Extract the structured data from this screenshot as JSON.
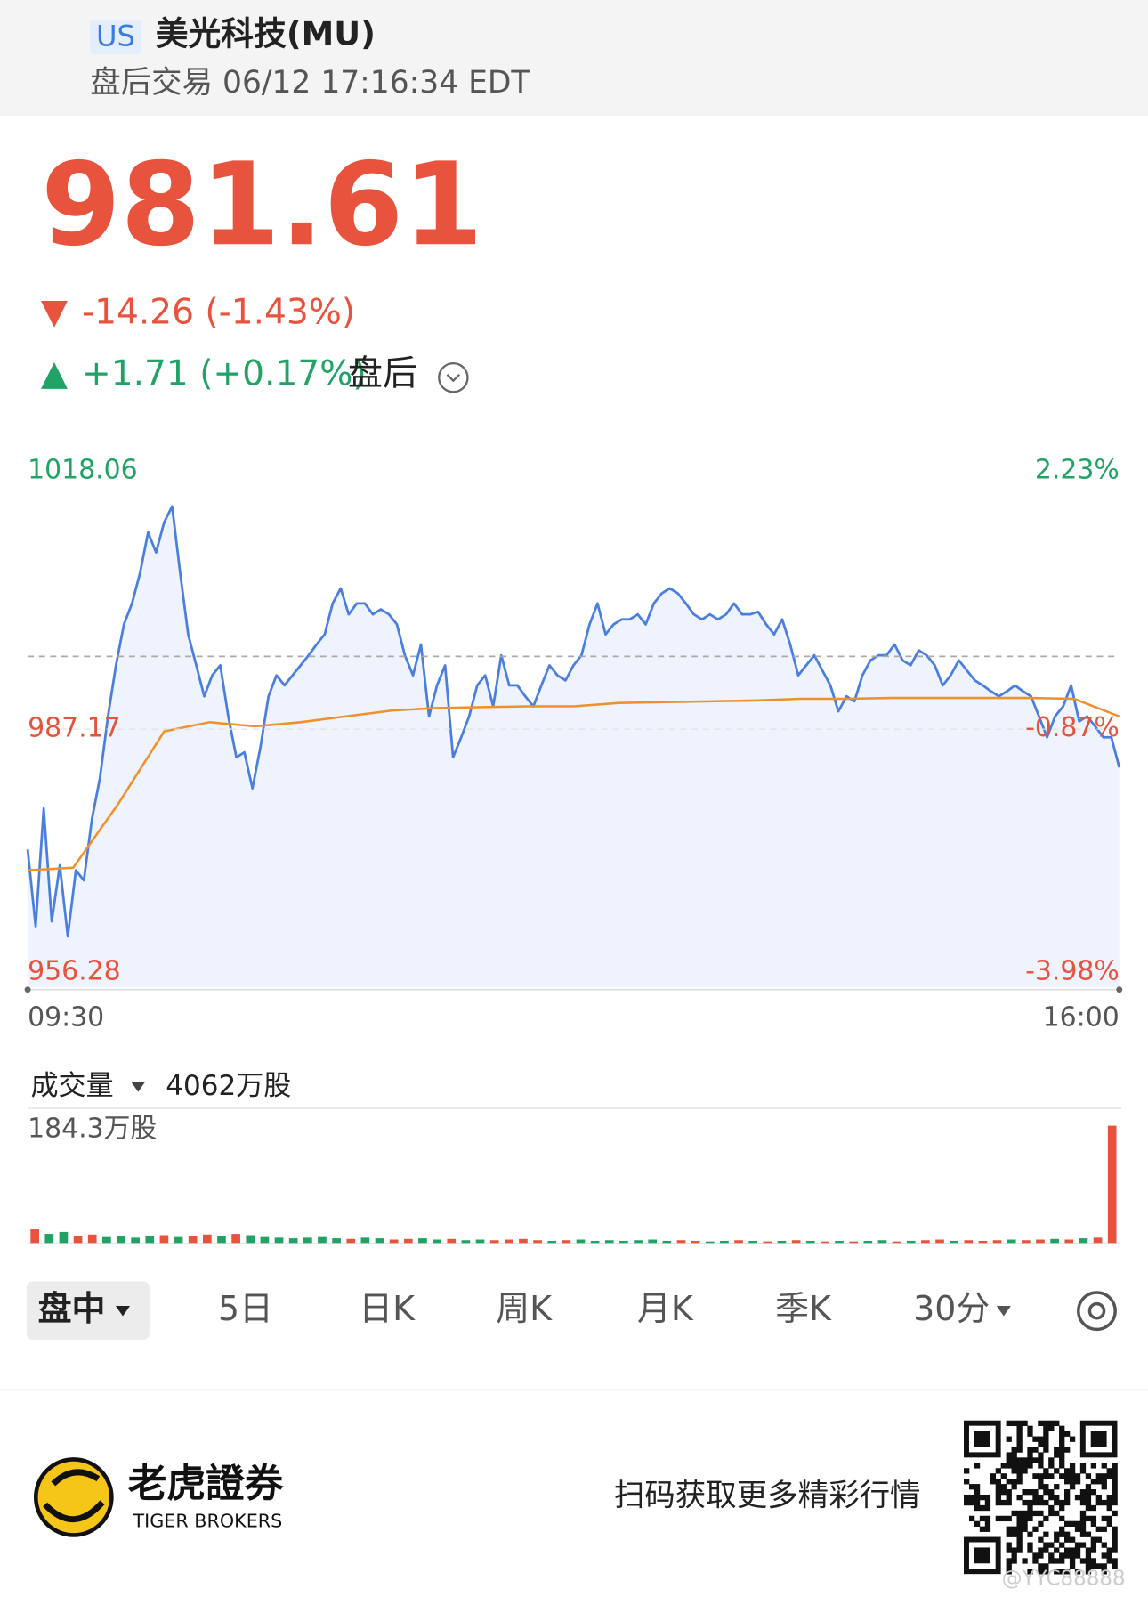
{
  "header": {
    "market": "US",
    "title": "美光科技(MU)",
    "status": "盘后交易 06/12 17:16:34 EDT"
  },
  "quote": {
    "price": "981.61",
    "change": "-14.26 (-1.43%)",
    "after_hours": "+1.71 (+0.17%)",
    "after_hours_label": "盘后"
  },
  "chart_data": {
    "type": "line",
    "x_labels": [
      "09:30",
      "16:00"
    ],
    "ylim": [
      956.28,
      1018.06
    ],
    "yticks": [
      956.28,
      987.17,
      1018.06
    ],
    "y2lim": [
      -3.98,
      2.23
    ],
    "y2ticks": [
      {
        "value": -3.98,
        "label": "-3.98%"
      },
      {
        "value": -0.87,
        "label": "-0.87%"
      },
      {
        "value": 2.23,
        "label": "2.23%"
      }
    ],
    "reference_line": 995.87,
    "up_color": "#21a366",
    "down_color": "#e8533e",
    "series": [
      {
        "color": "#4a7fe0",
        "fill": "#eef3fd",
        "values": [
          972.8,
          963.6,
          977.7,
          964.2,
          970.9,
          962.4,
          970.3,
          969.1,
          976.4,
          981.3,
          988.7,
          994.8,
          999.7,
          1002.2,
          1005.8,
          1010.7,
          1008.3,
          1011.9,
          1013.8,
          1005.8,
          998.5,
          994.8,
          991.1,
          993.6,
          994.8,
          988.7,
          983.8,
          984.4,
          980.1,
          985.0,
          991.1,
          993.6,
          992.4,
          993.6,
          994.8,
          996.0,
          997.3,
          998.5,
          1002.2,
          1004.0,
          1000.9,
          1002.2,
          1002.2,
          1000.9,
          1001.5,
          1000.9,
          999.7,
          996.0,
          993.6,
          997.3,
          988.7,
          992.4,
          994.8,
          983.8,
          986.2,
          988.7,
          992.4,
          993.6,
          989.9,
          996.0,
          992.4,
          992.4,
          991.1,
          989.9,
          992.4,
          994.8,
          993.6,
          993.0,
          994.8,
          996.0,
          999.7,
          1002.2,
          998.5,
          999.7,
          1000.3,
          1000.3,
          1000.9,
          999.7,
          1002.2,
          1003.4,
          1004.0,
          1003.4,
          1002.2,
          1000.9,
          1000.3,
          1000.9,
          1000.3,
          1000.9,
          1002.2,
          1000.9,
          1000.9,
          1001.2,
          999.7,
          998.5,
          1000.3,
          997.3,
          993.6,
          994.8,
          996.0,
          994.2,
          992.4,
          989.3,
          991.1,
          990.5,
          993.6,
          995.4,
          996.0,
          996.0,
          997.3,
          995.4,
          994.8,
          996.6,
          996.0,
          994.8,
          992.4,
          993.6,
          995.4,
          994.2,
          993.0,
          992.4,
          991.7,
          991.1,
          991.7,
          992.4,
          991.7,
          991.1,
          988.7,
          986.2,
          988.7,
          989.9,
          992.4,
          988.1,
          988.7,
          987.5,
          986.2,
          986.2,
          982.6
        ]
      },
      {
        "color": "#f0902a",
        "values": [
          970.3,
          970.6,
          978.3,
          986.9,
          988.0,
          987.5,
          988.0,
          988.7,
          989.4,
          989.7,
          989.8,
          989.9,
          989.9,
          990.3,
          990.4,
          990.5,
          990.6,
          990.8,
          990.8,
          990.9,
          990.9,
          990.9,
          990.9,
          990.8,
          988.7
        ]
      }
    ]
  },
  "volume": {
    "type": "bar",
    "label": "成交量",
    "total": "4062万股",
    "ylim": [
      0,
      184.3
    ],
    "yticks": [
      {
        "value": 184.3,
        "label": "184.3万股"
      }
    ],
    "values": [
      22,
      15,
      18,
      12,
      14,
      10,
      12,
      9,
      11,
      13,
      10,
      12,
      14,
      11,
      15,
      13,
      10,
      9,
      8,
      9,
      10,
      8,
      7,
      9,
      8,
      6,
      7,
      8,
      6,
      7,
      5,
      6,
      5,
      6,
      7,
      5,
      4,
      5,
      6,
      4,
      5,
      4,
      5,
      6,
      4,
      5,
      4,
      3,
      4,
      5,
      4,
      3,
      4,
      5,
      4,
      3,
      4,
      3,
      4,
      5,
      3,
      4,
      5,
      6,
      4,
      5,
      4,
      5,
      6,
      5,
      6,
      7,
      6,
      8,
      9,
      184.3
    ]
  },
  "tabs": [
    "盘中",
    "5日",
    "日K",
    "周K",
    "月K",
    "季K",
    "30分"
  ],
  "footer": {
    "brand": "老虎證券",
    "brand_en": "TIGER BROKERS",
    "slogan": "扫码获取更多精彩行情",
    "watermark": "@YYC88888"
  }
}
